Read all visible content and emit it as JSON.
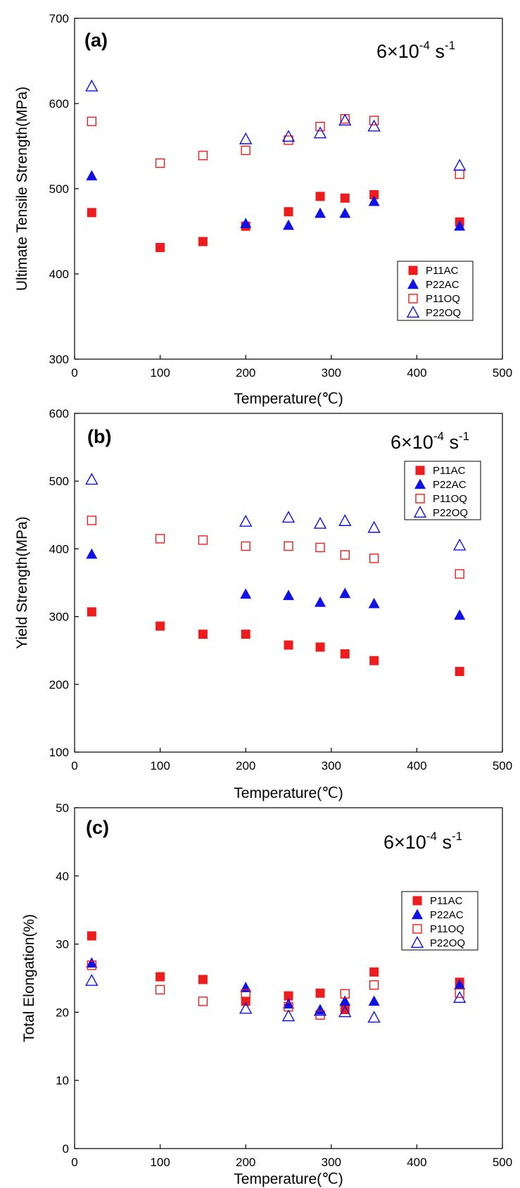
{
  "colors": {
    "ac_fill": "#ee1c1c",
    "blue": "#1010e8",
    "oq_red": "#ee1c1c",
    "axis": "#000000"
  },
  "chart_data": [
    {
      "type": "scatter",
      "panel_label": "(a)",
      "rate_label": {
        "base": "6×10",
        "exp": "-4",
        "unit": " s",
        "unit_exp": "-1"
      },
      "xlabel": "Temperature(℃)",
      "ylabel": "Ultimate Tensile Strength(MPa)",
      "xlim": [
        0,
        500
      ],
      "ylim": [
        300,
        700
      ],
      "xticks": [
        0,
        100,
        200,
        300,
        400,
        500
      ],
      "yticks": [
        300,
        400,
        500,
        600,
        700
      ],
      "grid": false,
      "legend_position": "lower-right",
      "series": [
        {
          "name": "P11AC",
          "marker": "filled-square",
          "x": [
            20,
            100,
            150,
            200,
            250,
            287,
            316,
            350,
            450
          ],
          "y": [
            472,
            431,
            438,
            456,
            473,
            491,
            489,
            493,
            461
          ]
        },
        {
          "name": "P22AC",
          "marker": "filled-triangle",
          "x": [
            20,
            200,
            250,
            287,
            316,
            350,
            450
          ],
          "y": [
            515,
            459,
            457,
            471,
            471,
            485,
            456
          ]
        },
        {
          "name": "P11OQ",
          "marker": "open-square",
          "x": [
            20,
            100,
            150,
            200,
            250,
            287,
            316,
            350,
            450
          ],
          "y": [
            579,
            530,
            539,
            545,
            557,
            573,
            582,
            580,
            517
          ]
        },
        {
          "name": "P22OQ",
          "marker": "open-triangle",
          "x": [
            20,
            200,
            250,
            287,
            316,
            350,
            450
          ],
          "y": [
            620,
            558,
            561,
            565,
            580,
            573,
            527
          ]
        }
      ]
    },
    {
      "type": "scatter",
      "panel_label": "(b)",
      "rate_label": {
        "base": "6×10",
        "exp": "-4",
        "unit": " s",
        "unit_exp": "-1"
      },
      "xlabel": "Temperature(℃)",
      "ylabel": "Yield Strength(MPa)",
      "xlim": [
        0,
        500
      ],
      "ylim": [
        100,
        600
      ],
      "xticks": [
        0,
        100,
        200,
        300,
        400,
        500
      ],
      "yticks": [
        100,
        200,
        300,
        400,
        500,
        600
      ],
      "grid": false,
      "legend_position": "upper-right",
      "series": [
        {
          "name": "P11AC",
          "marker": "filled-square",
          "x": [
            20,
            100,
            150,
            200,
            250,
            287,
            316,
            350,
            450
          ],
          "y": [
            307,
            286,
            274,
            274,
            258,
            255,
            245,
            235,
            219
          ]
        },
        {
          "name": "P22AC",
          "marker": "filled-triangle",
          "x": [
            20,
            200,
            250,
            287,
            316,
            350,
            450
          ],
          "y": [
            392,
            333,
            331,
            321,
            334,
            319,
            302
          ]
        },
        {
          "name": "P11OQ",
          "marker": "open-square",
          "x": [
            20,
            100,
            150,
            200,
            250,
            287,
            316,
            350,
            450
          ],
          "y": [
            442,
            415,
            413,
            404,
            404,
            402,
            391,
            386,
            363
          ]
        },
        {
          "name": "P22OQ",
          "marker": "open-triangle",
          "x": [
            20,
            200,
            250,
            287,
            316,
            350,
            450
          ],
          "y": [
            502,
            440,
            446,
            437,
            441,
            431,
            405
          ]
        }
      ]
    },
    {
      "type": "scatter",
      "panel_label": "(c)",
      "rate_label": {
        "base": "6×10",
        "exp": "-4",
        "unit": " s",
        "unit_exp": "-1"
      },
      "xlabel": "Temperature(℃)",
      "ylabel": "Total Elongation(%)",
      "xlim": [
        0,
        500
      ],
      "ylim": [
        0,
        50
      ],
      "xticks": [
        0,
        100,
        200,
        300,
        400,
        500
      ],
      "yticks": [
        0,
        10,
        20,
        30,
        40,
        50
      ],
      "grid": false,
      "legend_position": "right",
      "series": [
        {
          "name": "P11AC",
          "marker": "filled-square",
          "x": [
            20,
            100,
            150,
            200,
            250,
            287,
            316,
            350,
            450
          ],
          "y": [
            31.2,
            25.2,
            24.8,
            21.6,
            22.4,
            22.8,
            20.4,
            25.9,
            24.4
          ]
        },
        {
          "name": "P22AC",
          "marker": "filled-triangle",
          "x": [
            20,
            200,
            250,
            287,
            316,
            350,
            450
          ],
          "y": [
            27.2,
            23.6,
            21.2,
            20.3,
            21.6,
            21.6,
            24.0
          ]
        },
        {
          "name": "P11OQ",
          "marker": "open-square",
          "x": [
            20,
            100,
            150,
            200,
            250,
            287,
            316,
            350,
            450
          ],
          "y": [
            26.9,
            23.3,
            21.6,
            22.7,
            20.8,
            19.6,
            22.7,
            24.0,
            22.8
          ]
        },
        {
          "name": "P22OQ",
          "marker": "open-triangle",
          "x": [
            20,
            200,
            250,
            287,
            316,
            350,
            450
          ],
          "y": [
            24.6,
            20.5,
            19.4,
            20.2,
            20.0,
            19.2,
            22.1
          ]
        }
      ]
    }
  ]
}
